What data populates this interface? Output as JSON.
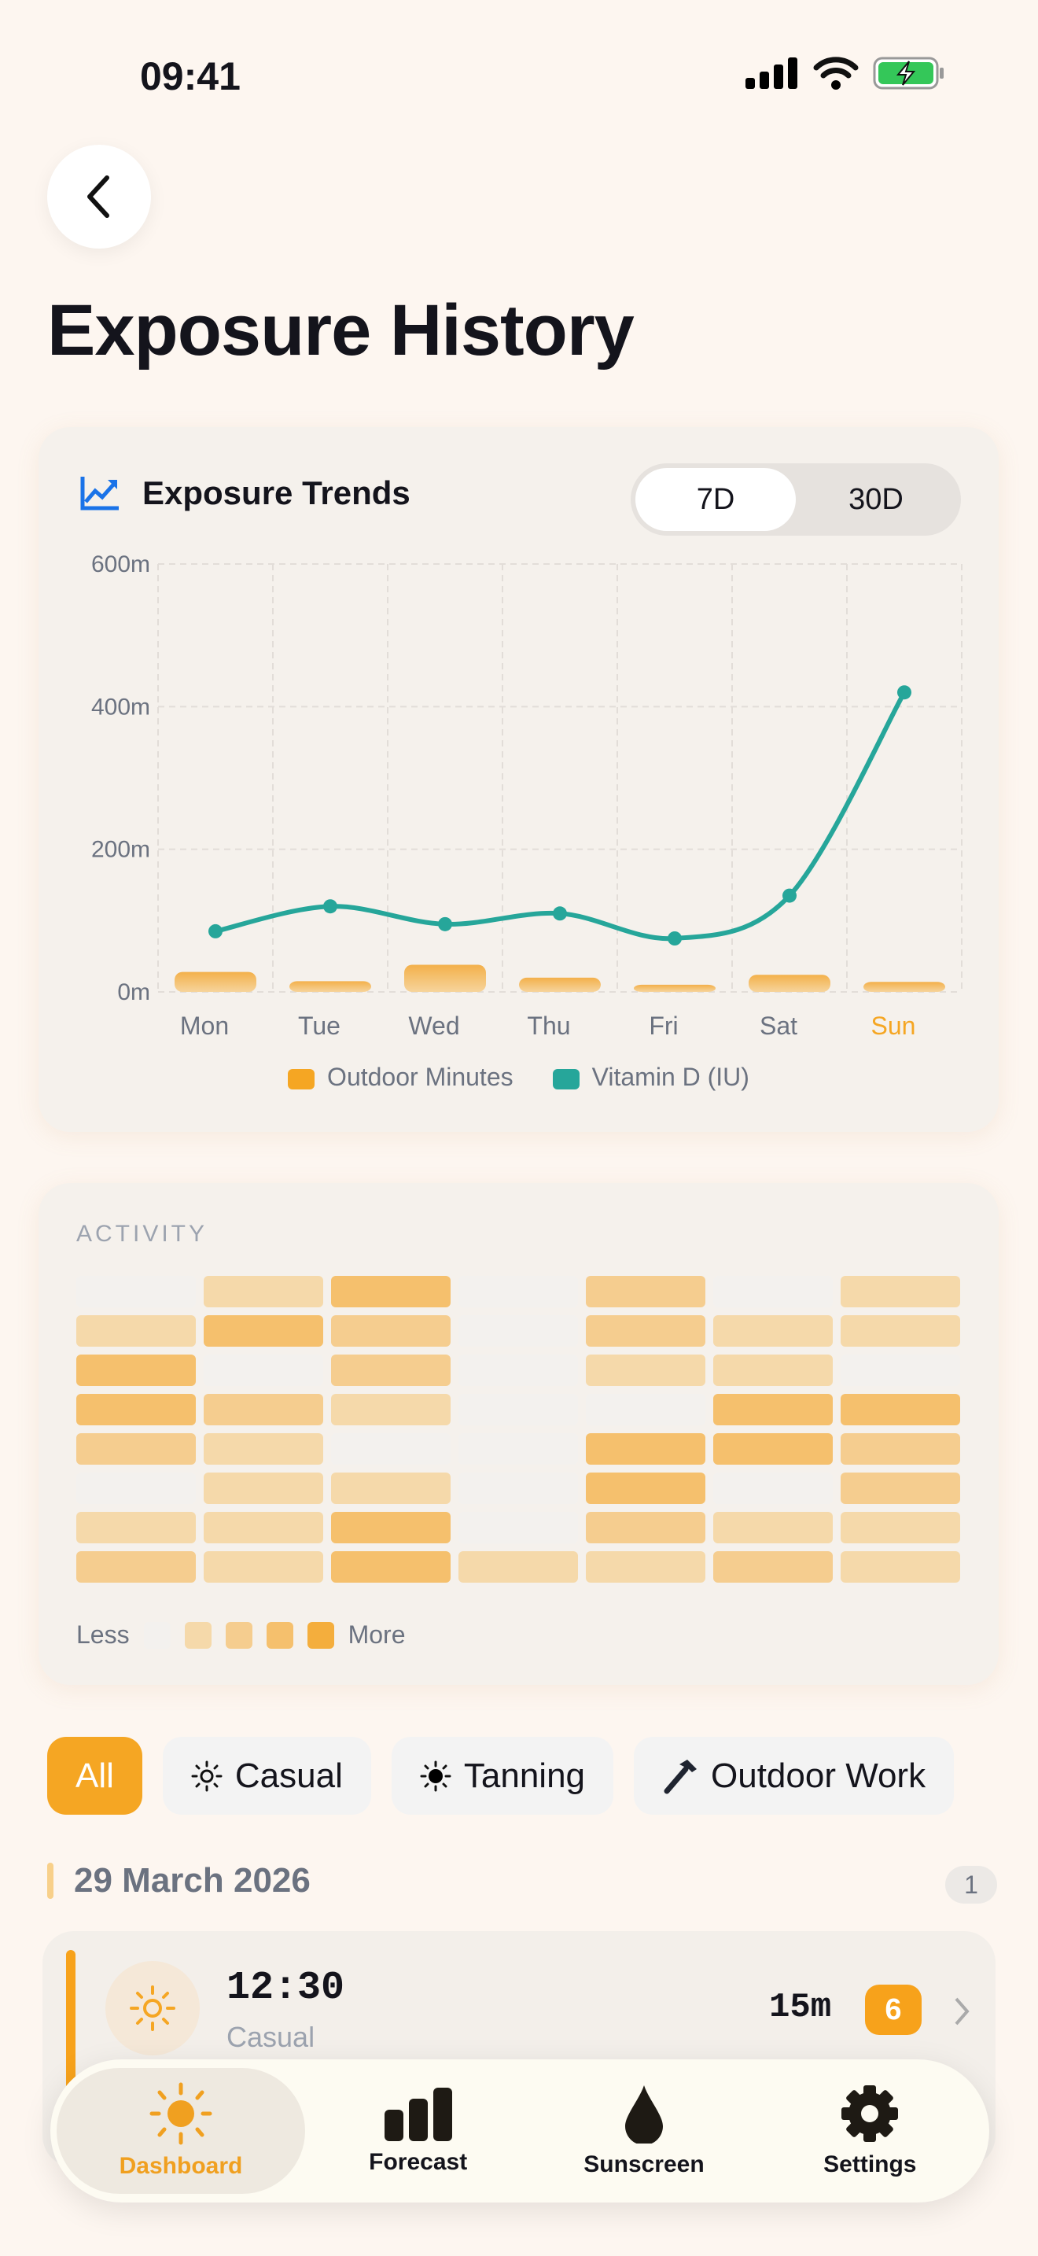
{
  "status": {
    "time": "09:41"
  },
  "page": {
    "title": "Exposure History"
  },
  "trends": {
    "title": "Exposure Trends",
    "ranges": [
      "7D",
      "30D"
    ],
    "selected": "7D"
  },
  "chart_data": {
    "type": "bar+line",
    "categories": [
      "Mon",
      "Tue",
      "Wed",
      "Thu",
      "Fri",
      "Sat",
      "Sun"
    ],
    "highlight_category": "Sun",
    "y_ticks": [
      "0m",
      "200m",
      "400m",
      "600m"
    ],
    "ylim": [
      0,
      600
    ],
    "grid": true,
    "legend_position": "bottom",
    "series": [
      {
        "name": "Outdoor Minutes",
        "type": "bar",
        "color": "#f5a623",
        "values": [
          28,
          15,
          38,
          20,
          10,
          24,
          14
        ]
      },
      {
        "name": "Vitamin D (IU)",
        "type": "line",
        "color": "#26a69a",
        "values": [
          85,
          120,
          95,
          110,
          75,
          135,
          420
        ]
      }
    ]
  },
  "activity": {
    "title": "ACTIVITY",
    "levels": [
      [
        0,
        1,
        3,
        0,
        2,
        0,
        1
      ],
      [
        1,
        3,
        2,
        0,
        2,
        1,
        1
      ],
      [
        3,
        0,
        2,
        0,
        1,
        1,
        0
      ],
      [
        3,
        2,
        1,
        0,
        0,
        3,
        3
      ],
      [
        2,
        1,
        0,
        0,
        3,
        3,
        2
      ],
      [
        0,
        1,
        1,
        0,
        3,
        0,
        2
      ],
      [
        1,
        1,
        3,
        0,
        2,
        1,
        1
      ],
      [
        2,
        1,
        3,
        1,
        1,
        2,
        1
      ]
    ],
    "colors": [
      "#f3f1ee",
      "#f5d9aa",
      "#f5cd8f",
      "#f5c06d",
      "#f4ae3d"
    ],
    "less": "Less",
    "more": "More"
  },
  "filters": [
    {
      "label": "All",
      "icon": ""
    },
    {
      "label": "Casual",
      "icon": "sun-outline-icon"
    },
    {
      "label": "Tanning",
      "icon": "sun-filled-icon"
    },
    {
      "label": "Outdoor Work",
      "icon": "hammer-icon"
    }
  ],
  "group": {
    "date": "29 March 2026",
    "count": "1"
  },
  "entry": {
    "time": "12:30",
    "type": "Casual",
    "duration": "15m",
    "uv": "6"
  },
  "nav": [
    {
      "label": "Dashboard",
      "icon": "sun-icon"
    },
    {
      "label": "Forecast",
      "icon": "bar-chart-icon"
    },
    {
      "label": "Sunscreen",
      "icon": "drop-icon"
    },
    {
      "label": "Settings",
      "icon": "gear-icon"
    }
  ]
}
